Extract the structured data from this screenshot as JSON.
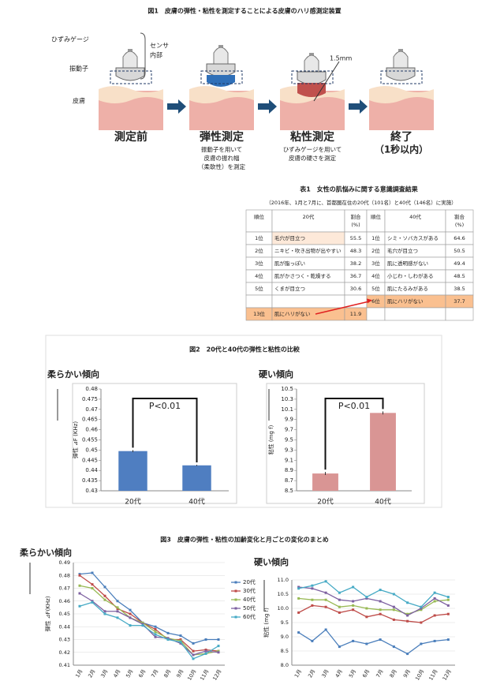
{
  "fig1": {
    "title": "図1　皮膚の弾性・粘性を測定することによる皮膚のハリ感測定装置",
    "gauge": "ひずみゲージ",
    "vibrator": "振動子",
    "skin": "皮膚",
    "sensor": [
      "センサ",
      "内部"
    ],
    "depth": "1.5mm",
    "steps": [
      {
        "label": "測定前"
      },
      {
        "label": "弾性測定",
        "note": [
          "振動子を用いて",
          "皮膚の振れ幅",
          "（柔軟性）を測定"
        ]
      },
      {
        "label": "粘性測定",
        "note": [
          "ひずみゲージを用いて",
          "皮膚の硬さを測定"
        ]
      },
      {
        "label": "終了",
        "note": [
          "（1秒以内）"
        ]
      }
    ]
  },
  "table1": {
    "title": "表1　女性の肌悩みに関する意識調査結果",
    "note": "（2016年、1月と7月に、首都圏在住の20代（101名）と40代（146名）に実施）",
    "header": [
      "順位",
      "20代",
      [
        "割合",
        "(%)"
      ],
      "順位",
      "40代",
      [
        "割合",
        "(%)"
      ]
    ],
    "rows": [
      [
        "1位",
        "毛穴が目立つ",
        "55.5",
        "1位",
        "シミ・ソバカスがある",
        "64.6"
      ],
      [
        "2位",
        "ニキビ・吹き出物が出やすい",
        "48.3",
        "2位",
        "毛穴が目立つ",
        "50.5"
      ],
      [
        "3位",
        "肌が脂っぽい",
        "38.2",
        "3位",
        "肌に透明感がない",
        "49.4"
      ],
      [
        "4位",
        "肌がかさつく・乾燥する",
        "36.7",
        "4位",
        "小じわ・しわがある",
        "48.5"
      ],
      [
        "5位",
        "くまが目立つ",
        "30.6",
        "5位",
        "肌にたるみがある",
        "38.5"
      ],
      [
        null,
        null,
        null,
        "6位",
        "肌にハリがない",
        "37.7"
      ],
      [
        "13位",
        "肌にハリがない",
        "11.9",
        null,
        null,
        null
      ]
    ]
  },
  "fig2_title": "図2　20代と40代の弾性と粘性の比較",
  "fig3_title": "図3　皮膚の弾性・粘性の加齢変化と月ごとの変化のまとめ",
  "chart_data": [
    {
      "type": "bar",
      "title": "柔らかい傾向",
      "ylabel": "弾性 ⊿F (KHz)",
      "categories": [
        "20代",
        "40代"
      ],
      "values": [
        0.4495,
        0.4425
      ],
      "error": [
        0.0005,
        0.0003
      ],
      "color": "#4f7ec1",
      "annotation": "P<0.01",
      "ylim": [
        0.43,
        0.48
      ],
      "yticks": [
        0.43,
        0.435,
        0.44,
        0.445,
        0.45,
        0.455,
        0.46,
        0.465,
        0.47,
        0.475,
        0.48
      ],
      "grid": false
    },
    {
      "type": "bar",
      "title": "硬い傾向",
      "ylabel": "粘性 (mg f)",
      "categories": [
        "20代",
        "40代"
      ],
      "values": [
        8.84,
        10.03
      ],
      "error": [
        0.03,
        0.03
      ],
      "color": "#d99594",
      "annotation": "P<0.01",
      "ylim": [
        8.5,
        10.5
      ],
      "yticks": [
        8.5,
        8.7,
        8.9,
        9.1,
        9.3,
        9.5,
        9.7,
        9.9,
        10.1,
        10.3,
        10.5
      ],
      "grid": false
    },
    {
      "type": "line",
      "title": "柔らかい傾向",
      "ylabel": "弾性 ⊿F(KHz)",
      "categories": [
        "1月",
        "2月",
        "3月",
        "4月",
        "5月",
        "6月",
        "7月",
        "8月",
        "9月",
        "10月",
        "11月",
        "12月"
      ],
      "series": [
        {
          "name": "20代",
          "color": "#4a7ebb",
          "values": [
            0.481,
            0.482,
            0.471,
            0.46,
            0.453,
            0.443,
            0.44,
            0.435,
            0.433,
            0.427,
            0.43,
            0.43
          ]
        },
        {
          "name": "30代",
          "color": "#be4b48",
          "values": [
            0.48,
            0.473,
            0.464,
            0.454,
            0.45,
            0.443,
            0.438,
            0.43,
            0.43,
            0.421,
            0.422,
            0.421
          ]
        },
        {
          "name": "40代",
          "color": "#98b954",
          "values": [
            0.472,
            0.47,
            0.461,
            0.455,
            0.447,
            0.443,
            0.436,
            0.431,
            0.429,
            0.418,
            0.419,
            0.421
          ]
        },
        {
          "name": "50代",
          "color": "#7d60a0",
          "values": [
            0.466,
            0.46,
            0.452,
            0.452,
            0.447,
            0.442,
            0.432,
            0.431,
            0.427,
            0.418,
            0.421,
            0.42
          ]
        },
        {
          "name": "60代",
          "color": "#46aac5",
          "values": [
            0.456,
            0.459,
            0.45,
            0.447,
            0.441,
            0.441,
            0.434,
            0.43,
            0.428,
            0.415,
            0.419,
            0.425
          ]
        }
      ],
      "ylim": [
        0.41,
        0.49
      ],
      "yticks": [
        0.41,
        0.42,
        0.43,
        0.44,
        0.45,
        0.46,
        0.47,
        0.48,
        0.49
      ],
      "grid": true,
      "legend": true
    },
    {
      "type": "line",
      "title": "硬い傾向",
      "ylabel": "粘性 (mg f)",
      "categories": [
        "1月",
        "2月",
        "3月",
        "4月",
        "5月",
        "6月",
        "7月",
        "8月",
        "9月",
        "10月",
        "11月",
        "12月"
      ],
      "series": [
        {
          "color": "#4a7ebb",
          "values": [
            9.15,
            8.85,
            9.25,
            8.65,
            8.85,
            8.75,
            8.9,
            8.65,
            8.4,
            8.75,
            8.85,
            8.9
          ]
        },
        {
          "color": "#be4b48",
          "values": [
            9.85,
            10.1,
            10.05,
            9.85,
            9.95,
            9.7,
            9.8,
            9.6,
            9.55,
            9.5,
            9.75,
            9.8
          ]
        },
        {
          "color": "#98b954",
          "values": [
            10.35,
            10.3,
            10.3,
            10.05,
            10.1,
            10.0,
            9.95,
            9.95,
            9.8,
            9.95,
            10.25,
            10.3
          ]
        },
        {
          "color": "#7d60a0",
          "values": [
            10.75,
            10.7,
            10.55,
            10.3,
            10.25,
            10.35,
            10.25,
            10.05,
            9.75,
            10.0,
            10.35,
            10.1
          ]
        },
        {
          "color": "#46aac5",
          "values": [
            10.7,
            10.8,
            10.95,
            10.55,
            10.75,
            10.4,
            10.65,
            10.5,
            10.2,
            10.05,
            10.55,
            10.4
          ]
        }
      ],
      "ylim": [
        8.0,
        11.0
      ],
      "yticks": [
        {
          "value": 8,
          "label": "8.0"
        },
        8.5,
        {
          "value": 9,
          "label": "9.0"
        },
        9.5,
        {
          "value": 10,
          "label": "10.0"
        },
        10.5,
        {
          "value": 11,
          "label": "11.0"
        }
      ],
      "grid": true,
      "legend": false
    }
  ]
}
